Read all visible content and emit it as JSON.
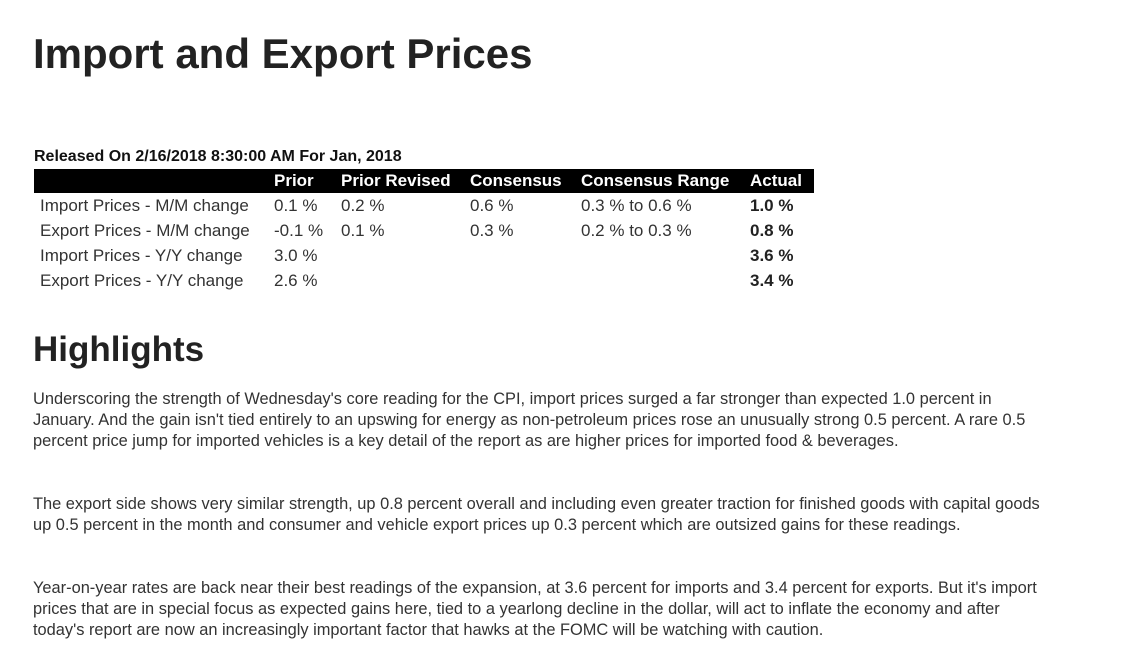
{
  "page": {
    "title": "Import and Export Prices"
  },
  "release": {
    "text": "Released On 2/16/2018 8:30:00 AM For Jan, 2018"
  },
  "table": {
    "headers": {
      "label": "",
      "prior": "Prior",
      "prior_revised": "Prior Revised",
      "consensus": "Consensus",
      "consensus_range": "Consensus Range",
      "actual": "Actual"
    },
    "rows": [
      {
        "label": "Import Prices - M/M change",
        "prior": "0.1 %",
        "prior_revised": "0.2 %",
        "consensus": "0.6 %",
        "consensus_range": "0.3 % to 0.6 %",
        "actual": "1.0 %"
      },
      {
        "label": "Export Prices - M/M change",
        "prior": "-0.1 %",
        "prior_revised": "0.1 %",
        "consensus": "0.3 %",
        "consensus_range": "0.2 % to 0.3 %",
        "actual": "0.8 %"
      },
      {
        "label": "Import Prices - Y/Y change",
        "prior": "3.0 %",
        "prior_revised": "",
        "consensus": "",
        "consensus_range": "",
        "actual": "3.6 %"
      },
      {
        "label": "Export Prices - Y/Y change",
        "prior": "2.6 %",
        "prior_revised": "",
        "consensus": "",
        "consensus_range": "",
        "actual": "3.4 %"
      }
    ]
  },
  "highlights": {
    "title": "Highlights",
    "paragraphs": [
      "Underscoring the strength of Wednesday's core reading for the CPI, import prices surged a far stronger than expected 1.0 percent in January. And the gain isn't tied entirely to an upswing for energy as non-petroleum prices rose an unusually strong 0.5 percent. A rare 0.5 percent price jump for imported vehicles is a key detail of the report as are higher prices for imported food & beverages.",
      "The export side shows very similar strength, up 0.8 percent overall and including even greater traction for finished goods with capital goods up 0.5 percent in the month and consumer and vehicle export prices up 0.3 percent which are outsized gains for these readings.",
      "Year-on-year rates are back near their best readings of the expansion, at 3.6 percent for imports and 3.4 percent for exports. But it's import prices that are in special focus as expected gains here, tied to a yearlong decline in the dollar, will act to inflate the economy and after today's report are now an increasingly important factor that hawks at the FOMC will be watching with caution."
    ]
  }
}
